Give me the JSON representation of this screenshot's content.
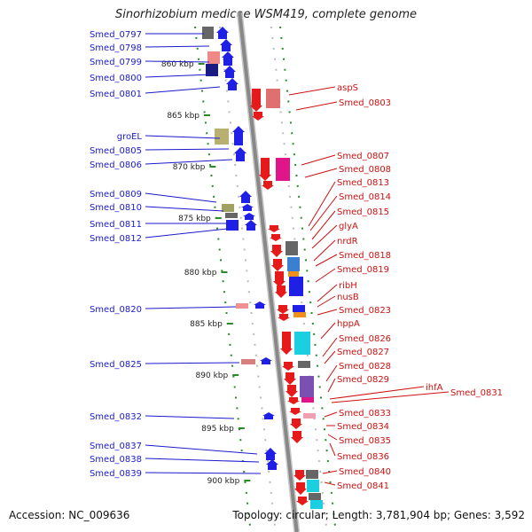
{
  "title": "Sinorhizobium medicae WSM419, complete genome",
  "accession": "Accession: NC_009636",
  "summary": "Topology: circular; Length: 3,781,904 bp; Genes: 3,592",
  "ticks": [
    {
      "label": "860 kbp"
    },
    {
      "label": "865 kbp"
    },
    {
      "label": "870 kbp"
    },
    {
      "label": "875 kbp"
    },
    {
      "label": "880 kbp"
    },
    {
      "label": "885 kbp"
    },
    {
      "label": "890 kbp"
    },
    {
      "label": "895 kbp"
    },
    {
      "label": "900 kbp"
    }
  ],
  "left_labels": [
    "Smed_0797",
    "Smed_0798",
    "Smed_0799",
    "Smed_0800",
    "Smed_0801",
    "groEL",
    "Smed_0805",
    "Smed_0806",
    "Smed_0809",
    "Smed_0810",
    "Smed_0811",
    "Smed_0812",
    "Smed_0820",
    "Smed_0825",
    "Smed_0832",
    "Smed_0837",
    "Smed_0838",
    "Smed_0839"
  ],
  "right_labels": [
    "aspS",
    "Smed_0803",
    "Smed_0807",
    "Smed_0808",
    "Smed_0813",
    "Smed_0814",
    "Smed_0815",
    "glyA",
    "nrdR",
    "Smed_0818",
    "Smed_0819",
    "ribH",
    "nusB",
    "Smed_0823",
    "hppA",
    "Smed_0826",
    "Smed_0827",
    "Smed_0828",
    "Smed_0829",
    "ihfA",
    "Smed_0831",
    "Smed_0833",
    "Smed_0834",
    "Smed_0835",
    "Smed_0836",
    "Smed_0840",
    "Smed_0841"
  ],
  "colors": {
    "left_label": "#1a1acc",
    "right_label": "#cc1111",
    "reverse_gene": "#1f1fe6",
    "forward_gene": "#e61a1a",
    "axis": "#888888",
    "tick": "#2a8a2a"
  }
}
